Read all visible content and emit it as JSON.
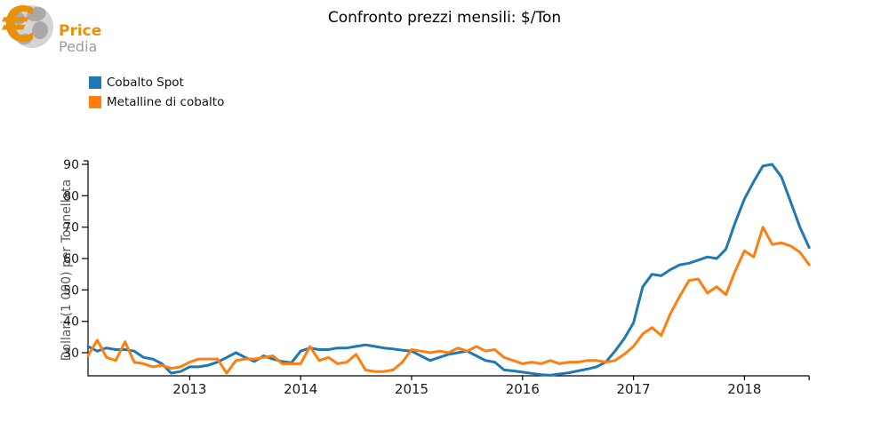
{
  "logo": {
    "euro_symbol": "€",
    "brand_top": "Price",
    "brand_bottom": "Pedia"
  },
  "title": "Confronto prezzi mensili: $/Ton",
  "legend": [
    {
      "label": "Cobalto Spot",
      "color": "#1f77b4"
    },
    {
      "label": "Metalline di cobalto",
      "color": "#ff7f0e"
    }
  ],
  "chart_data": {
    "type": "line",
    "title": "Confronto prezzi mensili: $/Ton",
    "xlabel": "",
    "ylabel": "Dollari (1 000) per Tonnellata",
    "ylim": [
      22.5,
      91
    ],
    "yticks": [
      30,
      40,
      50,
      60,
      70,
      80,
      90
    ],
    "xticks": [
      "2013",
      "2014",
      "2015",
      "2016",
      "2017",
      "2018"
    ],
    "grid": false,
    "legend_position": "upper-left",
    "x": [
      "2012-02",
      "2012-03",
      "2012-04",
      "2012-05",
      "2012-06",
      "2012-07",
      "2012-08",
      "2012-09",
      "2012-10",
      "2012-11",
      "2012-12",
      "2013-01",
      "2013-02",
      "2013-03",
      "2013-04",
      "2013-05",
      "2013-06",
      "2013-07",
      "2013-08",
      "2013-09",
      "2013-10",
      "2013-11",
      "2013-12",
      "2014-01",
      "2014-02",
      "2014-03",
      "2014-04",
      "2014-05",
      "2014-06",
      "2014-07",
      "2014-08",
      "2014-09",
      "2014-10",
      "2014-11",
      "2014-12",
      "2015-01",
      "2015-02",
      "2015-03",
      "2015-04",
      "2015-05",
      "2015-06",
      "2015-07",
      "2015-08",
      "2015-09",
      "2015-10",
      "2015-11",
      "2015-12",
      "2016-01",
      "2016-02",
      "2016-03",
      "2016-04",
      "2016-05",
      "2016-06",
      "2016-07",
      "2016-08",
      "2016-09",
      "2016-10",
      "2016-11",
      "2016-12",
      "2017-01",
      "2017-02",
      "2017-03",
      "2017-04",
      "2017-05",
      "2017-06",
      "2017-07",
      "2017-08",
      "2017-09",
      "2017-10",
      "2017-11",
      "2017-12",
      "2018-01",
      "2018-02",
      "2018-03",
      "2018-04",
      "2018-05",
      "2018-06",
      "2018-07",
      "2018-08"
    ],
    "series": [
      {
        "name": "Cobalto Spot",
        "color": "#1f77b4",
        "values": [
          32,
          30.5,
          31.5,
          31,
          31,
          30.5,
          28.5,
          28,
          26.5,
          23.5,
          24,
          25.5,
          25.5,
          26,
          27,
          28.5,
          30,
          28.5,
          27.2,
          29,
          28,
          27.2,
          26.8,
          30.5,
          31.5,
          31,
          31,
          31.5,
          31.5,
          32,
          32.5,
          32,
          31.5,
          31.2,
          30.8,
          30.5,
          29,
          27.5,
          28.5,
          29.5,
          30,
          30.5,
          29,
          27.5,
          27,
          24.5,
          24.2,
          23.8,
          23.4,
          23,
          22.8,
          23.2,
          23.6,
          24.2,
          24.8,
          25.5,
          27,
          30.5,
          34.5,
          39.5,
          51,
          55,
          54.5,
          56.5,
          58,
          58.5,
          59.5,
          60.5,
          60,
          63,
          71.5,
          79,
          84.5,
          89.5,
          90,
          86,
          78,
          70,
          63.5
        ]
      },
      {
        "name": "Metalline di cobalto",
        "color": "#ff7f0e",
        "values": [
          29,
          34,
          28.5,
          27.5,
          33.5,
          27,
          26.5,
          25.5,
          26,
          25,
          25.5,
          27,
          28,
          28,
          28,
          23.5,
          27.5,
          28,
          28,
          28.5,
          29,
          26.5,
          26.5,
          26.5,
          32,
          27.5,
          28.5,
          26.5,
          27,
          29.5,
          24.5,
          24,
          24,
          24.5,
          27,
          31,
          30.5,
          30,
          30.5,
          30,
          31.5,
          30.5,
          32,
          30.5,
          31,
          28.5,
          27.5,
          26.5,
          27,
          26.5,
          27.5,
          26.5,
          27,
          27,
          27.5,
          27.5,
          27,
          27.5,
          29.5,
          32,
          36,
          38,
          35.5,
          42.5,
          48,
          53,
          53.5,
          49,
          51,
          48.5,
          56,
          62.5,
          60.5,
          70,
          64.5,
          65,
          64,
          62,
          58
        ]
      }
    ]
  }
}
